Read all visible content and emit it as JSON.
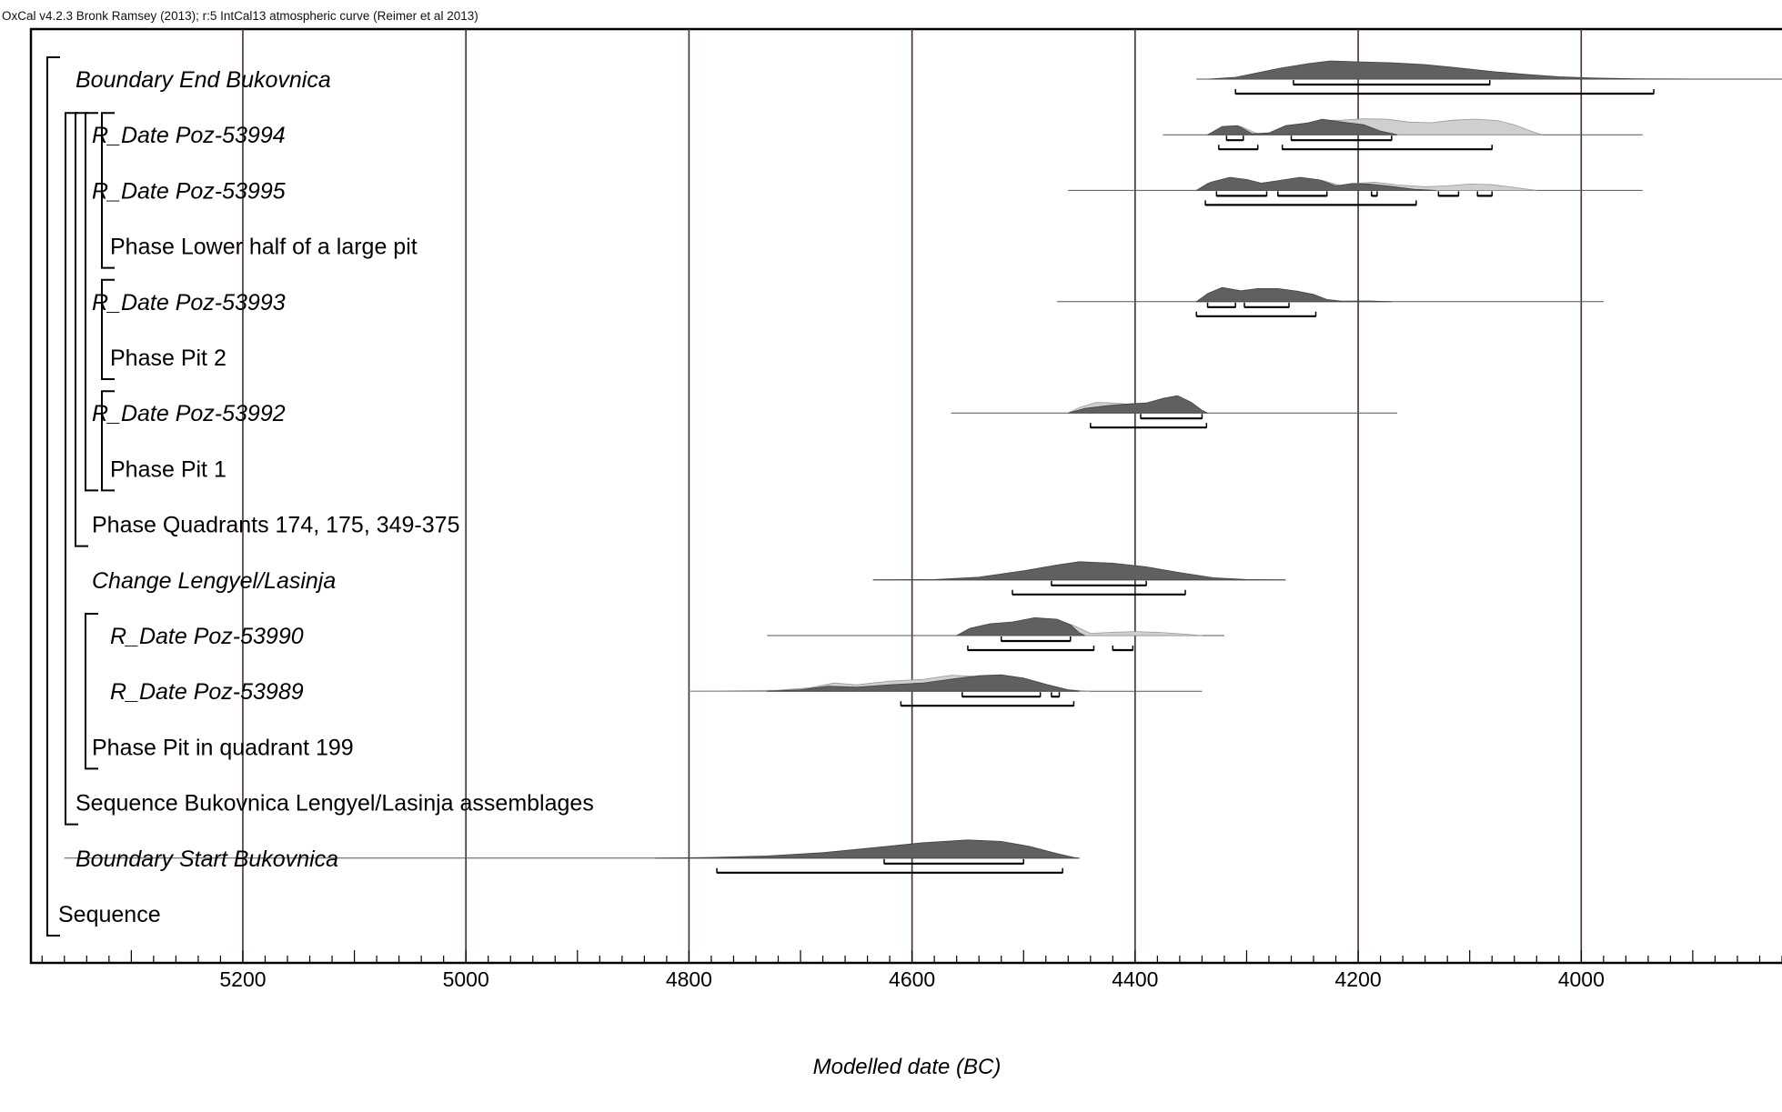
{
  "header": "OxCal v4.2.3 Bronk Ramsey (2013); r:5 IntCal13 atmospheric curve (Reimer et al 2013)",
  "chart_data": {
    "type": "oxcal-multiplot",
    "xlabel": "Modelled date (BC)",
    "ylabel": "",
    "xlim": [
      5390,
      3820
    ],
    "x_ticks": [
      5200,
      5000,
      4800,
      4600,
      4400,
      4200,
      4000
    ],
    "grid": true,
    "colors": {
      "posterior": "#606060",
      "likelihood": "#cfcfcf",
      "axis": "#000000",
      "grid": "#4a2e2e"
    },
    "rows": [
      {
        "label": "Boundary End Bukovnica",
        "italic": true,
        "indent": 2,
        "line": [
          4345,
          3820
        ],
        "posterior": [
          [
            4335,
            0
          ],
          [
            4310,
            0.1
          ],
          [
            4290,
            0.35
          ],
          [
            4270,
            0.6
          ],
          [
            4245,
            0.85
          ],
          [
            4225,
            1
          ],
          [
            4200,
            0.95
          ],
          [
            4170,
            0.9
          ],
          [
            4140,
            0.8
          ],
          [
            4110,
            0.62
          ],
          [
            4080,
            0.42
          ],
          [
            4050,
            0.26
          ],
          [
            4020,
            0.13
          ],
          [
            3990,
            0.06
          ],
          [
            3950,
            0.02
          ],
          [
            3900,
            0.005
          ],
          [
            3820,
            0
          ]
        ],
        "ranges68": [
          [
            4258,
            4082
          ]
        ],
        "ranges95": [
          [
            4310,
            3935
          ]
        ]
      },
      {
        "label": "R_Date Poz-53994",
        "italic": true,
        "indent": 3,
        "line": [
          4375,
          3945
        ],
        "likelihood": [
          [
            4335,
            0
          ],
          [
            4320,
            0.4
          ],
          [
            4305,
            0.45
          ],
          [
            4290,
            0.05
          ],
          [
            4270,
            0.1
          ],
          [
            4255,
            0.5
          ],
          [
            4235,
            0.78
          ],
          [
            4215,
            0.8
          ],
          [
            4195,
            0.88
          ],
          [
            4175,
            0.86
          ],
          [
            4155,
            0.7
          ],
          [
            4135,
            0.66
          ],
          [
            4115,
            0.8
          ],
          [
            4095,
            0.86
          ],
          [
            4075,
            0.78
          ],
          [
            4060,
            0.55
          ],
          [
            4045,
            0.2
          ],
          [
            4035,
            0
          ]
        ],
        "posterior": [
          [
            4335,
            0
          ],
          [
            4322,
            0.45
          ],
          [
            4308,
            0.5
          ],
          [
            4295,
            0.05
          ],
          [
            4280,
            0.1
          ],
          [
            4265,
            0.5
          ],
          [
            4245,
            0.65
          ],
          [
            4232,
            0.85
          ],
          [
            4215,
            0.7
          ],
          [
            4195,
            0.55
          ],
          [
            4180,
            0.2
          ],
          [
            4165,
            0
          ]
        ],
        "ranges68": [
          [
            4318,
            4303
          ],
          [
            4260,
            4170
          ]
        ],
        "ranges95": [
          [
            4325,
            4290
          ],
          [
            4268,
            4080
          ]
        ]
      },
      {
        "label": "R_Date Poz-53995",
        "italic": true,
        "indent": 3,
        "line": [
          4460,
          3945
        ],
        "likelihood": [
          [
            4345,
            0
          ],
          [
            4335,
            0.4
          ],
          [
            4315,
            0.65
          ],
          [
            4300,
            0.55
          ],
          [
            4285,
            0.35
          ],
          [
            4265,
            0.5
          ],
          [
            4248,
            0.65
          ],
          [
            4232,
            0.55
          ],
          [
            4215,
            0.25
          ],
          [
            4200,
            0.4
          ],
          [
            4185,
            0.45
          ],
          [
            4165,
            0.3
          ],
          [
            4140,
            0.2
          ],
          [
            4120,
            0.25
          ],
          [
            4100,
            0.35
          ],
          [
            4080,
            0.32
          ],
          [
            4055,
            0.12
          ],
          [
            4040,
            0
          ]
        ],
        "posterior": [
          [
            4345,
            0
          ],
          [
            4332,
            0.45
          ],
          [
            4315,
            0.72
          ],
          [
            4300,
            0.6
          ],
          [
            4287,
            0.4
          ],
          [
            4270,
            0.55
          ],
          [
            4252,
            0.72
          ],
          [
            4235,
            0.58
          ],
          [
            4220,
            0.25
          ],
          [
            4205,
            0.38
          ],
          [
            4190,
            0.35
          ],
          [
            4170,
            0.22
          ],
          [
            4150,
            0.06
          ],
          [
            4130,
            0
          ]
        ],
        "ranges68": [
          [
            4327,
            4282
          ],
          [
            4272,
            4228
          ],
          [
            4188,
            4183
          ],
          [
            4128,
            4110
          ],
          [
            4093,
            4080
          ]
        ],
        "ranges95": [
          [
            4337,
            4148
          ]
        ]
      },
      {
        "label": "Phase Lower half of a large pit",
        "italic": false,
        "indent": 4
      },
      {
        "label": "R_Date Poz-53993",
        "italic": true,
        "indent": 3,
        "line": [
          4470,
          3980
        ],
        "posterior": [
          [
            4345,
            0
          ],
          [
            4335,
            0.45
          ],
          [
            4322,
            0.78
          ],
          [
            4305,
            0.6
          ],
          [
            4290,
            0.72
          ],
          [
            4272,
            0.72
          ],
          [
            4255,
            0.58
          ],
          [
            4240,
            0.4
          ],
          [
            4228,
            0.12
          ],
          [
            4215,
            0.03
          ],
          [
            4190,
            0.04
          ],
          [
            4170,
            0
          ]
        ],
        "ranges68": [
          [
            4335,
            4310
          ],
          [
            4302,
            4262
          ]
        ],
        "ranges95": [
          [
            4345,
            4238
          ]
        ]
      },
      {
        "label": "Phase Pit 2",
        "italic": false,
        "indent": 4
      },
      {
        "label": "R_Date Poz-53992",
        "italic": true,
        "indent": 3,
        "line": [
          4565,
          4165
        ],
        "likelihood": [
          [
            4460,
            0
          ],
          [
            4450,
            0.3
          ],
          [
            4435,
            0.58
          ],
          [
            4420,
            0.55
          ],
          [
            4405,
            0.48
          ],
          [
            4390,
            0.52
          ],
          [
            4375,
            0.45
          ],
          [
            4360,
            0.3
          ],
          [
            4345,
            0.1
          ],
          [
            4335,
            0
          ]
        ],
        "posterior": [
          [
            4460,
            0
          ],
          [
            4445,
            0.25
          ],
          [
            4425,
            0.4
          ],
          [
            4405,
            0.5
          ],
          [
            4390,
            0.55
          ],
          [
            4375,
            0.8
          ],
          [
            4362,
            0.95
          ],
          [
            4350,
            0.6
          ],
          [
            4340,
            0.15
          ],
          [
            4335,
            0
          ]
        ],
        "ranges68": [
          [
            4395,
            4340
          ]
        ],
        "ranges95": [
          [
            4440,
            4336
          ]
        ]
      },
      {
        "label": "Phase Pit 1",
        "italic": false,
        "indent": 4
      },
      {
        "label": "Phase Quadrants 174, 175, 349-375",
        "italic": false,
        "indent": 3
      },
      {
        "label": "Change Lengyel/Lasinja",
        "italic": true,
        "indent": 3,
        "line": [
          4635,
          4265
        ],
        "posterior": [
          [
            4635,
            0
          ],
          [
            4580,
            0.02
          ],
          [
            4540,
            0.15
          ],
          [
            4500,
            0.5
          ],
          [
            4470,
            0.82
          ],
          [
            4450,
            1
          ],
          [
            4420,
            0.92
          ],
          [
            4390,
            0.72
          ],
          [
            4360,
            0.4
          ],
          [
            4330,
            0.12
          ],
          [
            4300,
            0.02
          ],
          [
            4265,
            0
          ]
        ],
        "ranges68": [
          [
            4475,
            4390
          ]
        ],
        "ranges95": [
          [
            4510,
            4355
          ]
        ]
      },
      {
        "label": "R_Date Poz-53990",
        "italic": true,
        "indent": 4,
        "line": [
          4730,
          4320
        ],
        "likelihood": [
          [
            4560,
            0
          ],
          [
            4548,
            0.4
          ],
          [
            4530,
            0.65
          ],
          [
            4510,
            0.72
          ],
          [
            4490,
            0.88
          ],
          [
            4470,
            0.85
          ],
          [
            4455,
            0.55
          ],
          [
            4440,
            0.12
          ],
          [
            4420,
            0.18
          ],
          [
            4400,
            0.22
          ],
          [
            4380,
            0.18
          ],
          [
            4360,
            0.1
          ],
          [
            4340,
            0
          ]
        ],
        "posterior": [
          [
            4560,
            0
          ],
          [
            4548,
            0.4
          ],
          [
            4530,
            0.65
          ],
          [
            4510,
            0.75
          ],
          [
            4490,
            0.98
          ],
          [
            4470,
            0.9
          ],
          [
            4458,
            0.6
          ],
          [
            4450,
            0.15
          ],
          [
            4445,
            0
          ]
        ],
        "ranges68": [
          [
            4520,
            4458
          ]
        ],
        "ranges95": [
          [
            4550,
            4437
          ],
          [
            4420,
            4402
          ]
        ]
      },
      {
        "label": "R_Date Poz-53989",
        "italic": true,
        "indent": 4,
        "line": [
          4800,
          4340
        ],
        "likelihood": [
          [
            4800,
            0
          ],
          [
            4720,
            0.05
          ],
          [
            4690,
            0.2
          ],
          [
            4670,
            0.45
          ],
          [
            4650,
            0.35
          ],
          [
            4620,
            0.55
          ],
          [
            4590,
            0.65
          ],
          [
            4565,
            0.88
          ],
          [
            4545,
            0.82
          ],
          [
            4520,
            0.72
          ],
          [
            4500,
            0.5
          ],
          [
            4480,
            0.25
          ],
          [
            4460,
            0.08
          ],
          [
            4440,
            0
          ]
        ],
        "posterior": [
          [
            4730,
            0
          ],
          [
            4700,
            0.08
          ],
          [
            4675,
            0.28
          ],
          [
            4650,
            0.22
          ],
          [
            4620,
            0.35
          ],
          [
            4590,
            0.45
          ],
          [
            4560,
            0.7
          ],
          [
            4540,
            0.85
          ],
          [
            4520,
            0.9
          ],
          [
            4500,
            0.72
          ],
          [
            4478,
            0.35
          ],
          [
            4460,
            0.08
          ],
          [
            4450,
            0
          ]
        ],
        "ranges68": [
          [
            4555,
            4485
          ],
          [
            4475,
            4468
          ]
        ],
        "ranges95": [
          [
            4610,
            4455
          ]
        ]
      },
      {
        "label": "Phase Pit in quadrant 199",
        "italic": false,
        "indent": 3
      },
      {
        "label": "Sequence Bukovnica Lengyel/Lasinja assemblages",
        "italic": false,
        "indent": 2
      },
      {
        "label": "Boundary Start Bukovnica",
        "italic": true,
        "indent": 2,
        "line": [
          5360,
          4450
        ],
        "posterior": [
          [
            4830,
            0
          ],
          [
            4780,
            0.04
          ],
          [
            4730,
            0.12
          ],
          [
            4680,
            0.3
          ],
          [
            4630,
            0.6
          ],
          [
            4590,
            0.85
          ],
          [
            4550,
            1
          ],
          [
            4520,
            0.92
          ],
          [
            4495,
            0.65
          ],
          [
            4470,
            0.25
          ],
          [
            4455,
            0.04
          ],
          [
            4450,
            0
          ]
        ],
        "ranges68": [
          [
            4625,
            4500
          ]
        ],
        "ranges95": [
          [
            4775,
            4465
          ]
        ]
      },
      {
        "label": "Sequence",
        "italic": false,
        "indent": 1
      }
    ]
  }
}
